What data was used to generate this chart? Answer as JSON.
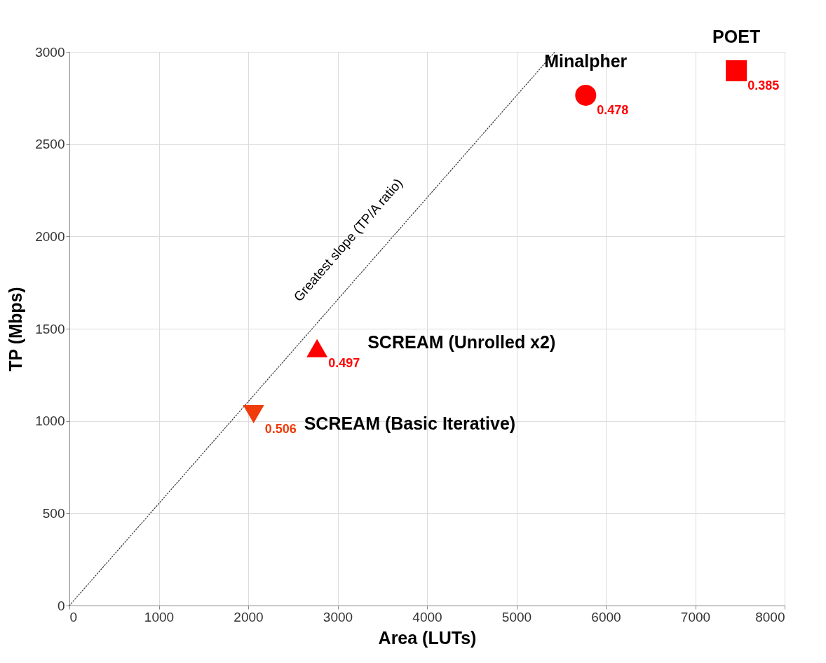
{
  "chart_data": {
    "type": "scatter",
    "xlabel": "Area (LUTs)",
    "ylabel": "TP (Mbps)",
    "xlim": [
      0,
      8000
    ],
    "xticks": [
      0,
      1000,
      2000,
      3000,
      4000,
      5000,
      6000,
      7000,
      8000
    ],
    "ylim": [
      0,
      3000
    ],
    "yticks": [
      0,
      500,
      1000,
      1500,
      2000,
      2500,
      3000
    ],
    "grid": true,
    "series": [
      {
        "type": "line",
        "color": "#333333",
        "line_style": "dotted",
        "x": [
          0,
          5430
        ],
        "values": [
          0,
          3000
        ]
      },
      {
        "name": "SCREAM (Basic Iterative)",
        "color": "#f03c0a",
        "marker": "triangle-down",
        "x": [
          2060
        ],
        "values": [
          1037
        ]
      },
      {
        "name": "SCREAM (Unrolled x2)",
        "color": "#ff0000",
        "marker": "triangle",
        "x": [
          2770
        ],
        "values": [
          1395
        ]
      },
      {
        "name": "Minalpher",
        "color": "#ff0000",
        "marker": "circle",
        "x": [
          5775
        ],
        "values": [
          2765
        ]
      },
      {
        "name": "POET",
        "color": "#ff0000",
        "marker": "square",
        "x": [
          7460
        ],
        "values": [
          2898
        ]
      }
    ],
    "annotations": [
      "Greatest slope (TP/A ratio)",
      {
        "text": "0.506",
        "x": 2060,
        "y": 1037
      },
      {
        "text": "0.497",
        "x": 2770,
        "y": 1395
      },
      {
        "text": "0.478",
        "x": 5775,
        "y": 2765
      },
      {
        "text": "0.385",
        "x": 7460,
        "y": 2898
      }
    ]
  }
}
